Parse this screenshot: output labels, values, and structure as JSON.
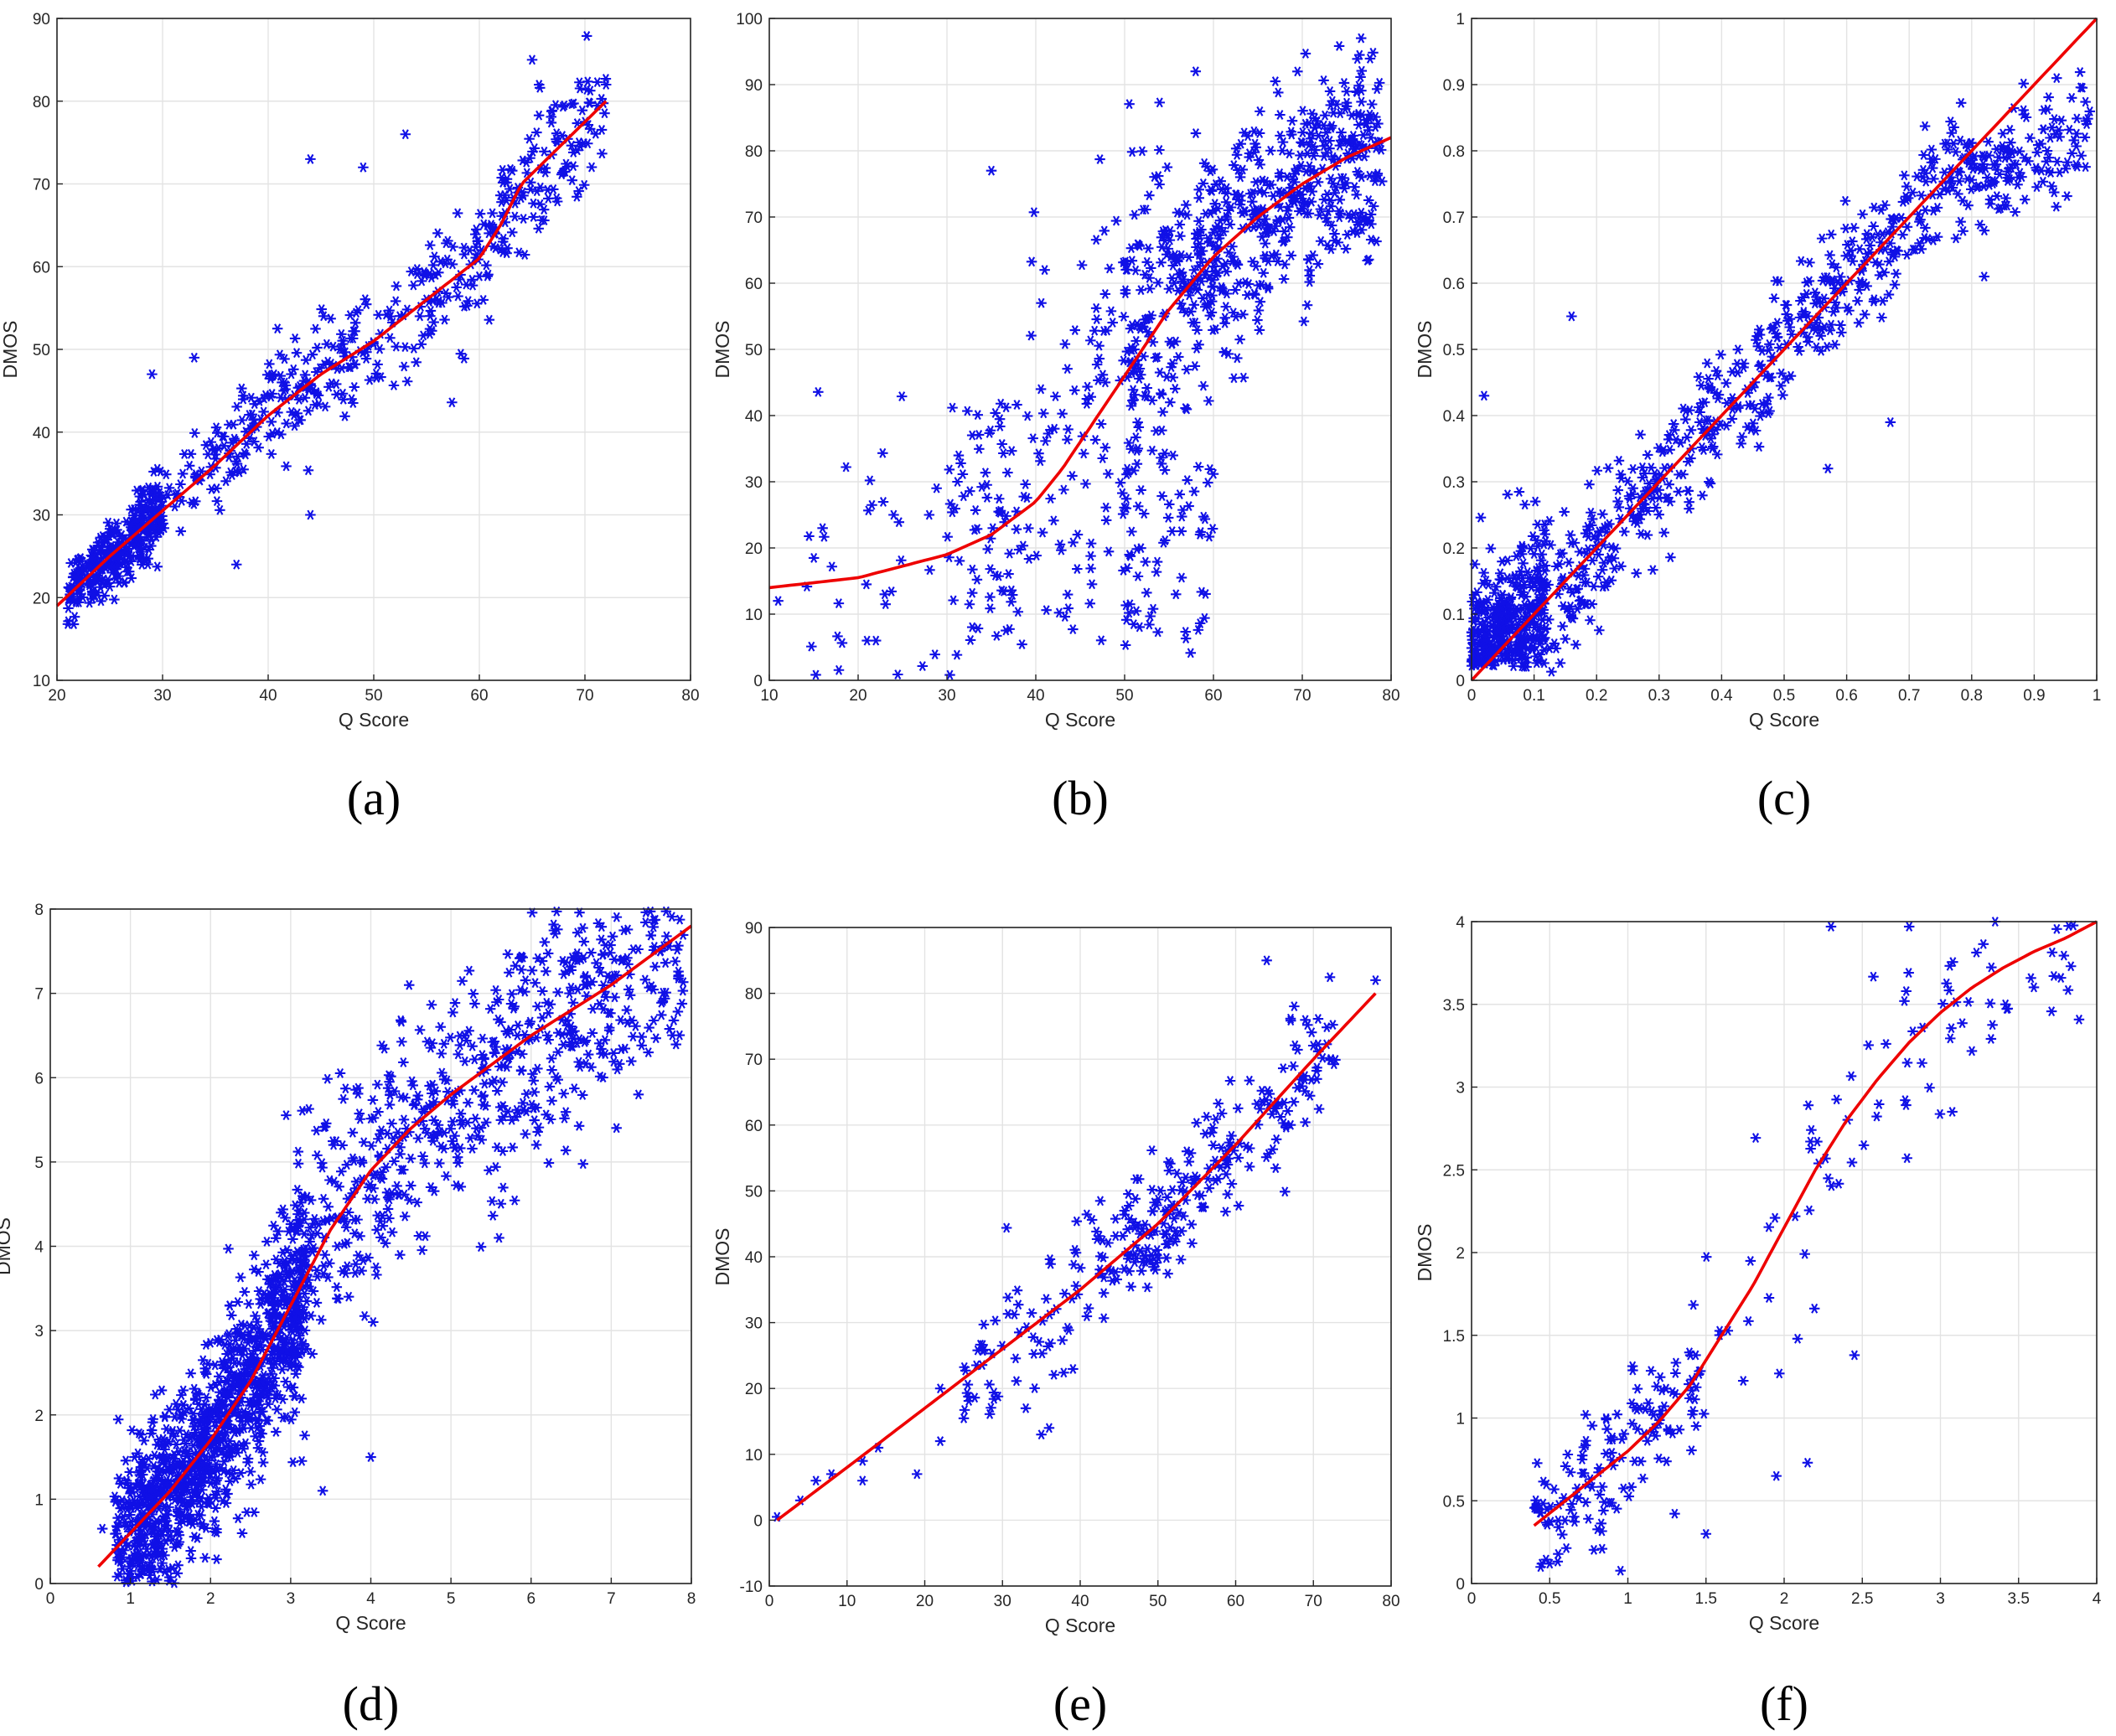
{
  "figure": {
    "colors": {
      "points": "#1010e6",
      "fit": "#ee0000",
      "grid": "#e3e3e3",
      "axis": "#262626"
    }
  },
  "chart_data": [
    {
      "id": "a",
      "type": "scatter",
      "caption": "(a)",
      "xlabel": "Q Score",
      "ylabel": "DMOS",
      "xlim": [
        20,
        80
      ],
      "ylim": [
        10,
        90
      ],
      "xticks": [
        20,
        30,
        40,
        50,
        60,
        70,
        80
      ],
      "yticks": [
        10,
        20,
        30,
        40,
        50,
        60,
        70,
        80,
        90
      ],
      "grid": true,
      "n_points": 780,
      "fit_curve": {
        "x": [
          20,
          25,
          30,
          35,
          40,
          45,
          50,
          55,
          60,
          62,
          64,
          68,
          72
        ],
        "y": [
          19,
          25,
          30.5,
          36,
          42,
          47,
          51,
          56,
          61,
          65,
          70,
          75,
          80
        ]
      },
      "outliers": [
        [
          44,
          73
        ],
        [
          49,
          72
        ],
        [
          53,
          76
        ],
        [
          65,
          85
        ],
        [
          72,
          82
        ],
        [
          29,
          47
        ],
        [
          33,
          49
        ],
        [
          37,
          24
        ],
        [
          44,
          30
        ]
      ]
    },
    {
      "id": "b",
      "type": "scatter",
      "caption": "(b)",
      "xlabel": "Q Score",
      "ylabel": "DMOS",
      "xlim": [
        10,
        80
      ],
      "ylim": [
        0,
        100
      ],
      "xticks": [
        10,
        20,
        30,
        40,
        50,
        60,
        70,
        80
      ],
      "yticks": [
        0,
        10,
        20,
        30,
        40,
        50,
        60,
        70,
        80,
        90,
        100
      ],
      "grid": true,
      "n_points": 900,
      "fit_curve": {
        "x": [
          10,
          20,
          30,
          35,
          40,
          43,
          46,
          50,
          55,
          60,
          65,
          70,
          75,
          80
        ],
        "y": [
          14,
          15.5,
          19,
          22,
          27,
          32,
          38,
          46,
          56,
          64,
          70,
          75,
          79,
          82
        ]
      },
      "outliers": [
        [
          11,
          12
        ],
        [
          16,
          23
        ],
        [
          21,
          6
        ],
        [
          22,
          6
        ],
        [
          35,
          77
        ],
        [
          41,
          62
        ],
        [
          24,
          25
        ],
        [
          28,
          25
        ],
        [
          23,
          13
        ],
        [
          58,
          92
        ]
      ]
    },
    {
      "id": "c",
      "type": "scatter",
      "caption": "(c)",
      "xlabel": "Q Score",
      "ylabel": "DMOS",
      "xlim": [
        0,
        1
      ],
      "ylim": [
        0,
        1
      ],
      "xticks": [
        0,
        0.1,
        0.2,
        0.3,
        0.4,
        0.5,
        0.6,
        0.7,
        0.8,
        0.9,
        1
      ],
      "yticks": [
        0,
        0.1,
        0.2,
        0.3,
        0.4,
        0.5,
        0.6,
        0.7,
        0.8,
        0.9,
        1
      ],
      "grid": true,
      "n_points": 1000,
      "fit_curve": {
        "x": [
          0,
          1
        ],
        "y": [
          0,
          1
        ]
      },
      "outliers": [
        [
          0.16,
          0.55
        ],
        [
          0.02,
          0.43
        ],
        [
          0.82,
          0.61
        ],
        [
          0.96,
          0.88
        ],
        [
          0.57,
          0.32
        ],
        [
          0.67,
          0.39
        ]
      ]
    },
    {
      "id": "d",
      "type": "scatter",
      "caption": "(d)",
      "xlabel": "Q Score",
      "ylabel": "DMOS",
      "xlim": [
        0,
        8
      ],
      "ylim": [
        0,
        8
      ],
      "xticks": [
        0,
        1,
        2,
        3,
        4,
        5,
        6,
        7,
        8
      ],
      "yticks": [
        0,
        1,
        2,
        3,
        4,
        5,
        6,
        7,
        8
      ],
      "grid": true,
      "n_points": 1800,
      "fit_curve": {
        "x": [
          0.6,
          1,
          1.5,
          2,
          2.5,
          3,
          3.5,
          4,
          4.5,
          5,
          6,
          7,
          8
        ],
        "y": [
          0.2,
          0.6,
          1.1,
          1.7,
          2.4,
          3.3,
          4.2,
          4.9,
          5.4,
          5.8,
          6.5,
          7.1,
          7.8
        ]
      },
      "outliers": [
        [
          4,
          1.5
        ],
        [
          3.4,
          1.1
        ],
        [
          0.65,
          0.65
        ],
        [
          5.6,
          4.1
        ]
      ]
    },
    {
      "id": "e",
      "type": "scatter",
      "caption": "(e)",
      "xlabel": "Q Score",
      "ylabel": "DMOS",
      "xlim": [
        0,
        80
      ],
      "ylim": [
        -10,
        90
      ],
      "xticks": [
        0,
        10,
        20,
        30,
        40,
        50,
        60,
        70,
        80
      ],
      "yticks": [
        -10,
        0,
        10,
        20,
        30,
        40,
        50,
        60,
        70,
        80,
        90
      ],
      "grid": true,
      "n_points": 300,
      "fit_curve": {
        "x": [
          1,
          10,
          20,
          30,
          40,
          50,
          60,
          70,
          78
        ],
        "y": [
          0,
          8,
          17,
          26,
          35,
          45,
          57,
          70,
          80
        ]
      },
      "outliers": [
        [
          1,
          0.5
        ],
        [
          4,
          3
        ],
        [
          6,
          6
        ],
        [
          8,
          7
        ],
        [
          12,
          6
        ],
        [
          12,
          9
        ],
        [
          14,
          11
        ],
        [
          19,
          7
        ],
        [
          22,
          12
        ],
        [
          22,
          20
        ],
        [
          33,
          17
        ],
        [
          35,
          13
        ],
        [
          36,
          14
        ],
        [
          64,
          85
        ],
        [
          78,
          82
        ]
      ]
    },
    {
      "id": "f",
      "type": "scatter",
      "caption": "(f)",
      "xlabel": "Q Score",
      "ylabel": "DMOS",
      "xlim": [
        0,
        4
      ],
      "ylim": [
        0,
        4
      ],
      "xticks": [
        0,
        0.5,
        1,
        1.5,
        2,
        2.5,
        3,
        3.5,
        4
      ],
      "yticks": [
        0,
        0.5,
        1,
        1.5,
        2,
        2.5,
        3,
        3.5,
        4
      ],
      "grid": true,
      "n_points": 240,
      "fit_curve": {
        "x": [
          0.4,
          0.6,
          0.8,
          1,
          1.2,
          1.4,
          1.6,
          1.8,
          2,
          2.2,
          2.4,
          2.6,
          2.8,
          3,
          3.2,
          3.4,
          3.6,
          3.8,
          4
        ],
        "y": [
          0.35,
          0.5,
          0.65,
          0.8,
          0.98,
          1.2,
          1.5,
          1.8,
          2.15,
          2.5,
          2.8,
          3.05,
          3.27,
          3.45,
          3.6,
          3.72,
          3.82,
          3.9,
          4
        ]
      },
      "outliers": [
        [
          0.45,
          0.12
        ],
        [
          0.5,
          0.12
        ],
        [
          2.3,
          3.97
        ],
        [
          2.8,
          3.97
        ],
        [
          3.35,
          4
        ],
        [
          1.5,
          0.3
        ],
        [
          2.15,
          0.73
        ],
        [
          1.95,
          0.65
        ],
        [
          2.45,
          1.38
        ]
      ]
    }
  ]
}
